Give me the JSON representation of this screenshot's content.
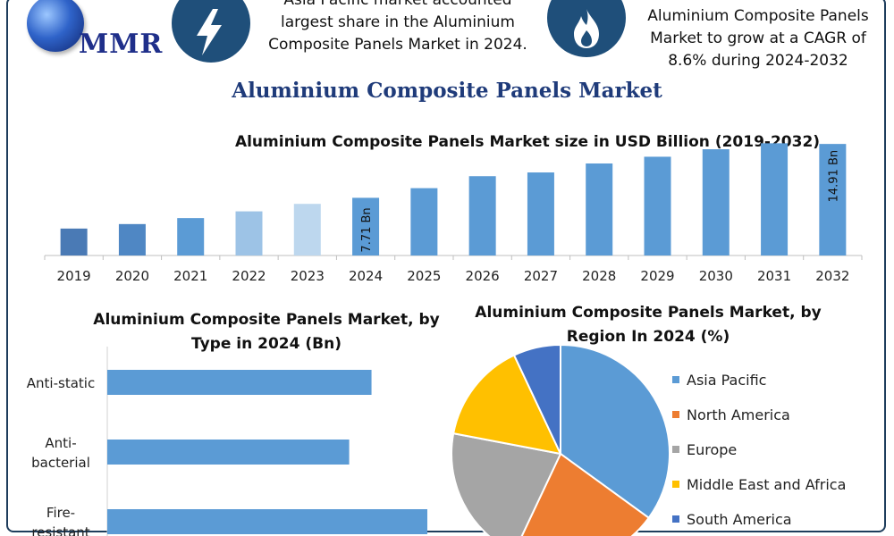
{
  "logo": {
    "text": "MMR"
  },
  "header": {
    "callout_left": "Asia Pacific market accounted largest share in the Aluminium Composite Panels Market in 2024.",
    "callout_right": "Aluminium Composite Panels Market to grow at a CAGR of 8.6% during 2024-2032",
    "icons": [
      "lightning-bolt-icon",
      "flame-icon"
    ],
    "title": "Aluminium Composite Panels Market"
  },
  "chart_data": [
    {
      "type": "bar",
      "title": "Aluminium Composite Panels Market size in USD Billion (2019-2032)",
      "categories": [
        "2019",
        "2020",
        "2021",
        "2022",
        "2023",
        "2024",
        "2025",
        "2026",
        "2027",
        "2028",
        "2029",
        "2030",
        "2031",
        "2032"
      ],
      "values": [
        3.6,
        4.2,
        5.0,
        5.9,
        6.9,
        7.71,
        9.0,
        10.6,
        11.1,
        12.3,
        13.2,
        14.2,
        15.0,
        14.91
      ],
      "bar_colors": [
        "#4a7ab5",
        "#4f87c4",
        "#5b9bd5",
        "#9dc3e6",
        "#bdd7ee",
        "#5b9bd5",
        "#5b9bd5",
        "#5b9bd5",
        "#5b9bd5",
        "#5b9bd5",
        "#5b9bd5",
        "#5b9bd5",
        "#5b9bd5",
        "#5b9bd5"
      ],
      "data_labels": [
        {
          "category": "2024",
          "text": "7.71 Bn"
        },
        {
          "category": "2032",
          "text": "14.91 Bn"
        }
      ],
      "ylim": [
        0,
        16
      ],
      "xlabel": "",
      "ylabel": "",
      "grid": false
    },
    {
      "type": "bar",
      "orientation": "horizontal",
      "title": "Aluminium Composite Panels Market, by Type in 2024 (Bn)",
      "categories": [
        "Anti-static",
        "Anti-bacterial",
        "Fire-resistant"
      ],
      "category_lines": [
        [
          "Anti-static"
        ],
        [
          "Anti-",
          "bacterial"
        ],
        [
          "Fire-",
          "resistant"
        ]
      ],
      "values": [
        7.1,
        6.5,
        8.6
      ],
      "xlim": [
        0,
        10
      ],
      "color": "#5b9bd5",
      "grid": false
    },
    {
      "type": "pie",
      "title": "Aluminium Composite Panels Market, by Region In 2024 (%)",
      "categories": [
        "Asia Pacific",
        "North America",
        "Europe",
        "Middle East and Africa",
        "South America"
      ],
      "values": [
        35,
        22,
        21,
        15,
        7
      ],
      "colors": [
        "#5b9bd5",
        "#ed7d31",
        "#a5a5a5",
        "#ffc000",
        "#4472c4"
      ],
      "legend_position": "right"
    }
  ]
}
